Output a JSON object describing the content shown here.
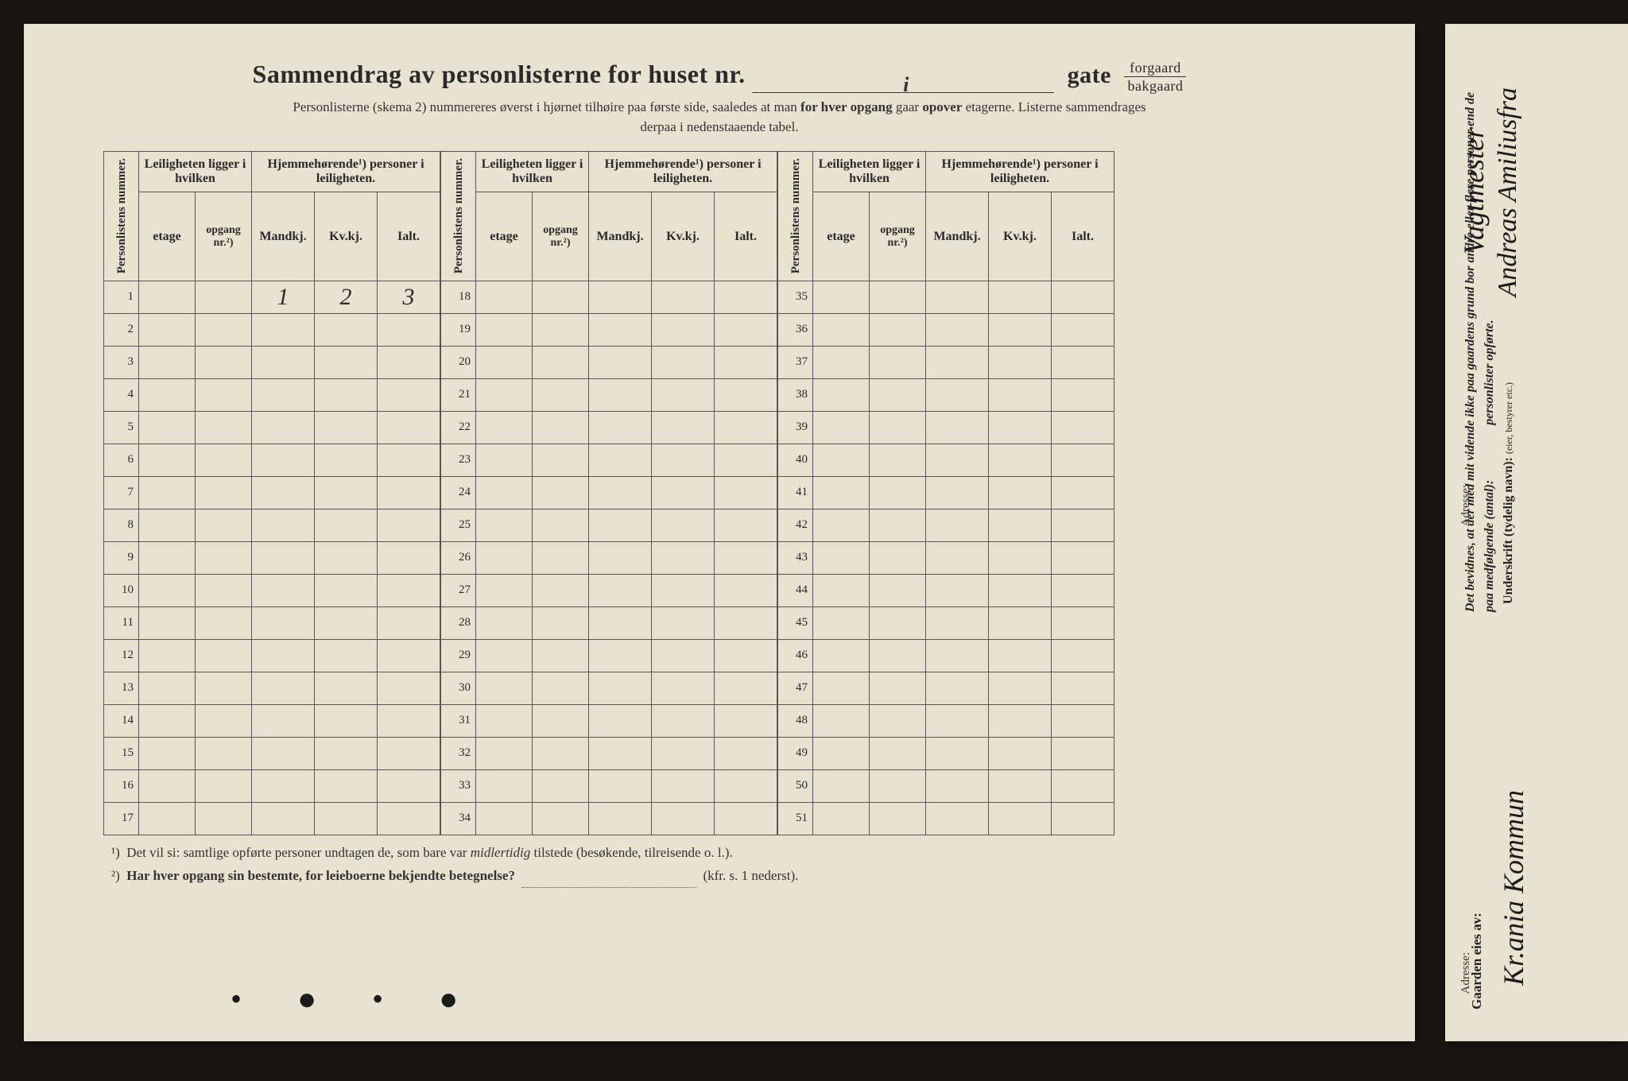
{
  "title_prefix": "Sammendrag av personlisterne for huset nr.",
  "title_hand": "i",
  "title_gate": "gate",
  "frac_top": "forgaard",
  "frac_bot": "bakgaard",
  "subtitle_1": "Personlisterne (skema 2) nummereres øverst i hjørnet tilhøire paa første side, saaledes at man ",
  "subtitle_b1": "for hver opgang",
  "subtitle_2": " gaar ",
  "subtitle_b2": "opover",
  "subtitle_3": " etagerne.  Listerne sammendrages",
  "subtitle_4": "derpaa i nedenstaaende tabel.",
  "col_personlist": "Personlistens nummer.",
  "col_leilig": "Leiligheten ligger i hvilken",
  "col_hjemme": "Hjemmehørende¹) personer i leiligheten.",
  "col_etage": "etage",
  "col_opgang": "opgang nr.²)",
  "col_mandkj": "Mandkj.",
  "col_kvkj": "Kv.kj.",
  "col_ialt": "Ialt.",
  "row1": {
    "mandkj": "1",
    "kvkj": "2",
    "ialt": "3"
  },
  "block1_rows": [
    1,
    2,
    3,
    4,
    5,
    6,
    7,
    8,
    9,
    10,
    11,
    12,
    13,
    14,
    15,
    16,
    17
  ],
  "block2_rows": [
    18,
    19,
    20,
    21,
    22,
    23,
    24,
    25,
    26,
    27,
    28,
    29,
    30,
    31,
    32,
    33,
    34
  ],
  "block3_rows": [
    35,
    36,
    37,
    38,
    39,
    40,
    41,
    42,
    43,
    44,
    45,
    46,
    47,
    48,
    49,
    50,
    51
  ],
  "fn1_sup": "¹)",
  "fn1": "Det vil si: samtlige opførte personer undtagen de, som bare var ",
  "fn1_i": "midlertidig",
  "fn1_b": " tilstede (besøkende, tilreisende o. l.).",
  "fn2_sup": "²)",
  "fn2": "Har hver opgang sin bestemte, for leieboerne bekjendte betegnelse?",
  "fn2_tail": "(kfr. s. 1 nederst).",
  "side_it": "Det bevidnes, at der med mit vidende ikke paa gaardens grund bor andre eller flere personer end de paa medfølgende (antal):",
  "side_it2": "personlister opførte.",
  "side_under": "Underskrift",
  "side_under_tail": " (tydelig navn):",
  "side_small": "(eier, bestyrer etc.)",
  "side_adresse": "Adresse:",
  "side_gaarden": "Gaarden eies av:",
  "sig1": "Andreas Amiliusfra",
  "sig1b": "Vagtmester",
  "sig2": "Kr.ania Kommun"
}
